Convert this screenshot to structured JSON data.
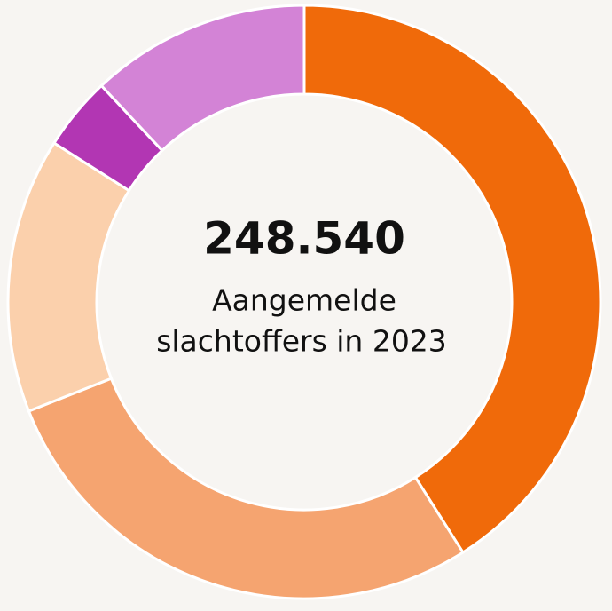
{
  "chart_data": {
    "type": "donut",
    "values": [
      41,
      28,
      15,
      4,
      12
    ],
    "colors": [
      "#f06a0a",
      "#f5a470",
      "#fbd0ac",
      "#b236b3",
      "#d383d6"
    ],
    "center_value": "248.540",
    "center_text": [
      "Aangemelde",
      "slachtoffers in 2023"
    ]
  }
}
